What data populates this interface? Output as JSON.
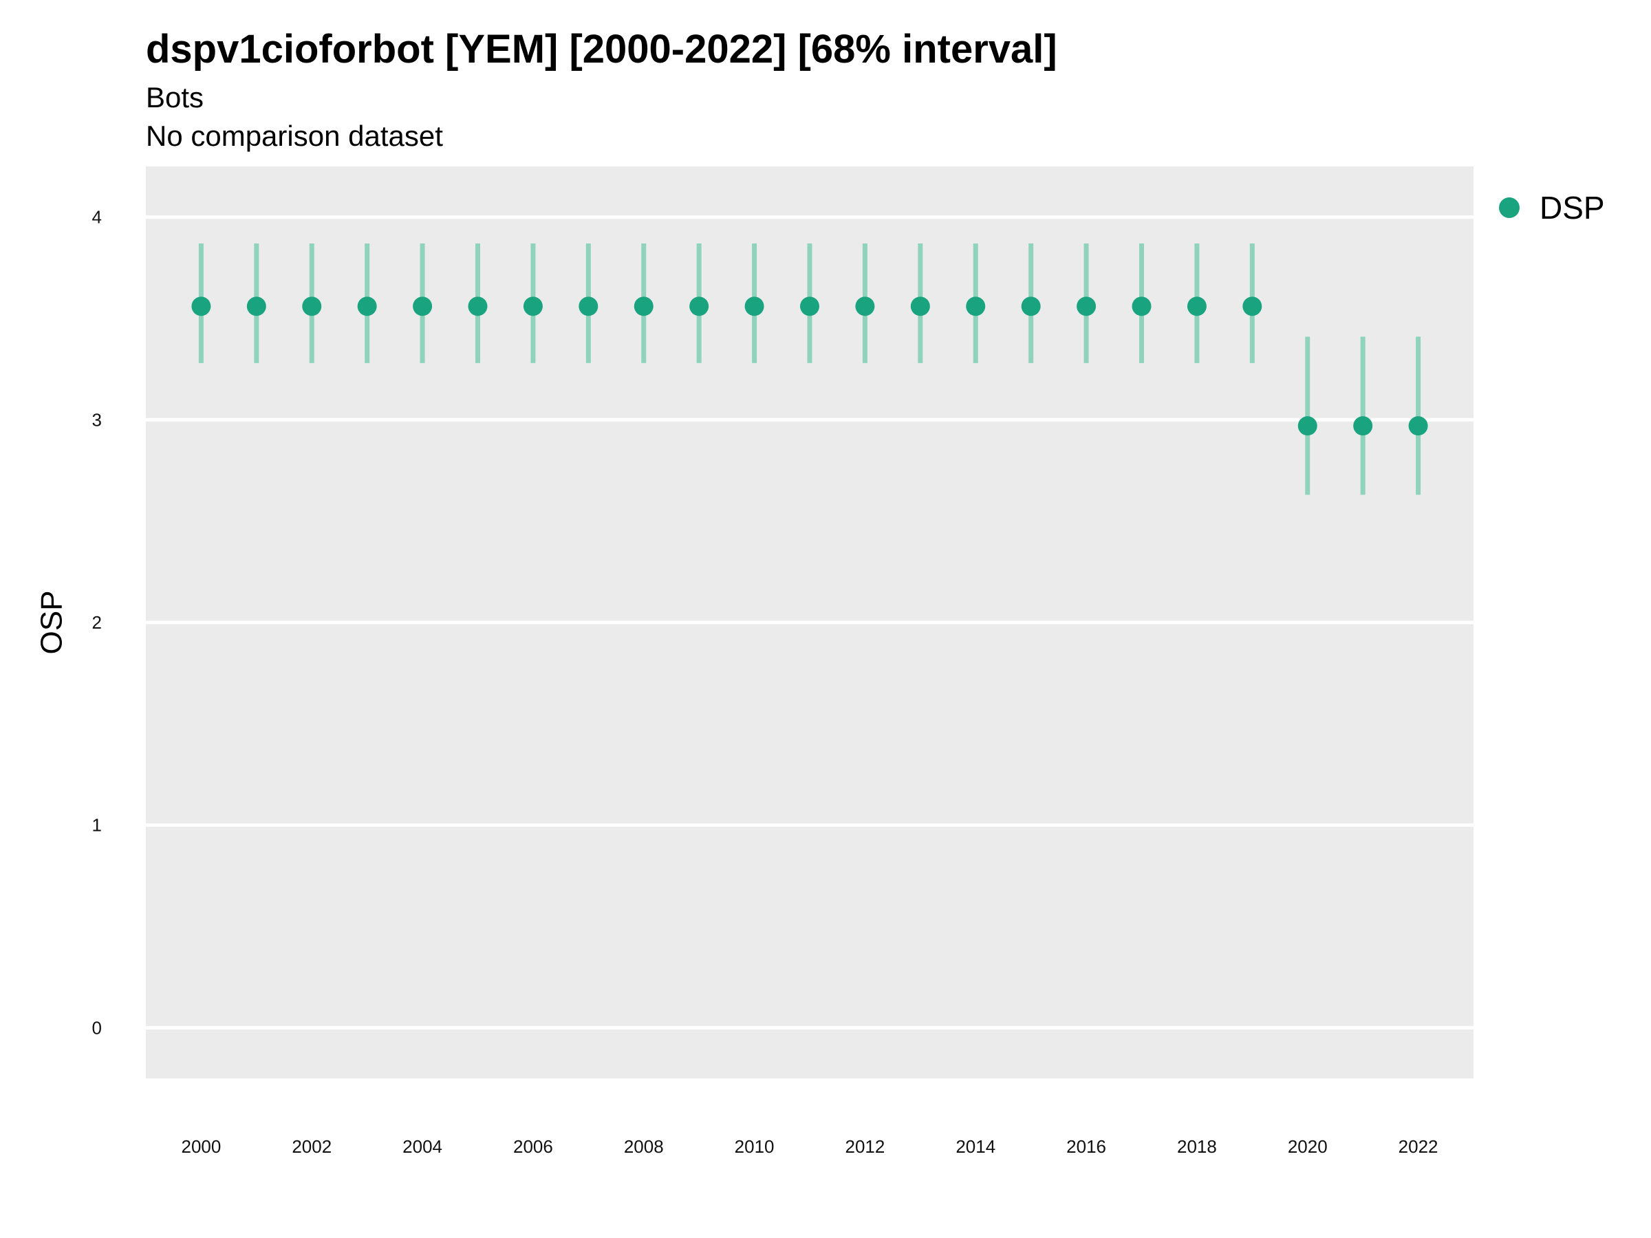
{
  "colors": {
    "panel_bg": "#ebebeb",
    "grid": "#ffffff",
    "point": "#1aa37f",
    "interval": "#8fd3bd"
  },
  "chart_data": {
    "type": "scatter",
    "title": "dspv1cioforbot [YEM] [2000-2022] [68% interval]",
    "subtitle": [
      "Bots",
      "No comparison dataset"
    ],
    "xlabel": "",
    "ylabel": "OSP",
    "xlim": [
      1999,
      2023
    ],
    "ylim": [
      -0.25,
      4.25
    ],
    "x_ticks": [
      2000,
      2002,
      2004,
      2006,
      2008,
      2010,
      2012,
      2014,
      2016,
      2018,
      2020,
      2022
    ],
    "y_ticks": [
      0,
      1,
      2,
      3,
      4
    ],
    "grid": true,
    "legend_position": "right-top",
    "series": [
      {
        "name": "DSP",
        "x": [
          2000,
          2001,
          2002,
          2003,
          2004,
          2005,
          2006,
          2007,
          2008,
          2009,
          2010,
          2011,
          2012,
          2013,
          2014,
          2015,
          2016,
          2017,
          2018,
          2019,
          2020,
          2021,
          2022
        ],
        "y": [
          3.56,
          3.56,
          3.56,
          3.56,
          3.56,
          3.56,
          3.56,
          3.56,
          3.56,
          3.56,
          3.56,
          3.56,
          3.56,
          3.56,
          3.56,
          3.56,
          3.56,
          3.56,
          3.56,
          3.56,
          2.97,
          2.97,
          2.97
        ],
        "lower": [
          3.28,
          3.28,
          3.28,
          3.28,
          3.28,
          3.28,
          3.28,
          3.28,
          3.28,
          3.28,
          3.28,
          3.28,
          3.28,
          3.28,
          3.28,
          3.28,
          3.28,
          3.28,
          3.28,
          3.28,
          2.63,
          2.63,
          2.63
        ],
        "upper": [
          3.87,
          3.87,
          3.87,
          3.87,
          3.87,
          3.87,
          3.87,
          3.87,
          3.87,
          3.87,
          3.87,
          3.87,
          3.87,
          3.87,
          3.87,
          3.87,
          3.87,
          3.87,
          3.87,
          3.87,
          3.41,
          3.41,
          3.41
        ]
      }
    ]
  }
}
